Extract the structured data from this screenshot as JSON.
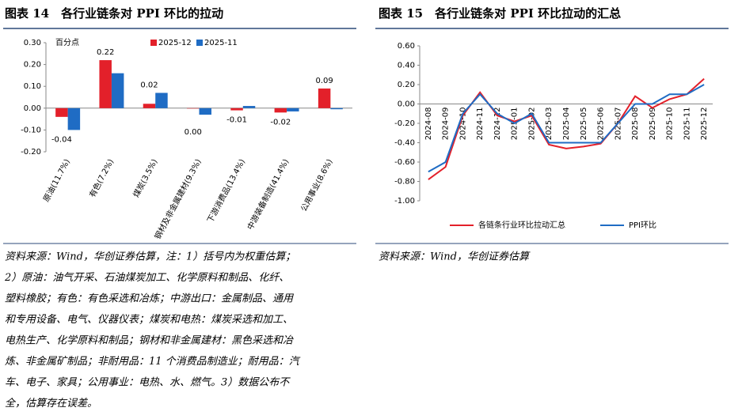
{
  "chart_data": [
    {
      "type": "bar",
      "title": "图表 14　各行业链条对 PPI 环比的拉动",
      "y_unit": "百分点",
      "categories": [
        "原油(11.7%)",
        "有色(7.2%)",
        "煤炭(3.5%)",
        "钢材及非金属建材(9.3%)",
        "下游消费品(13.4%)",
        "中游装备制造(41.4%)",
        "公用事业(8.6%)"
      ],
      "series": [
        {
          "name": "2025-12",
          "color": "#e3202a",
          "values": [
            -0.04,
            0.22,
            0.02,
            0.0,
            -0.01,
            -0.02,
            0.09
          ],
          "value_labels": [
            "-0.04",
            "0.22",
            "0.02",
            "0.00",
            "-0.01",
            "-0.02",
            "0.09"
          ]
        },
        {
          "name": "2025-11",
          "color": "#1f6cc4",
          "values": [
            -0.1,
            0.16,
            0.07,
            -0.03,
            0.01,
            -0.015,
            -0.005
          ]
        }
      ],
      "ylim": [
        -0.2,
        0.3
      ],
      "yticks": [
        {
          "value": -0.2,
          "label": "-0.20"
        },
        {
          "value": -0.1,
          "label": "-0.10"
        },
        {
          "value": 0,
          "label": "0.00"
        },
        {
          "value": 0.1,
          "label": "0.10"
        },
        {
          "value": 0.2,
          "label": "0.20"
        },
        {
          "value": 0.3,
          "label": "0.30"
        }
      ],
      "legend": "top"
    },
    {
      "type": "line",
      "title": "图表 15　各行业链条对 PPI 环比拉动的汇总",
      "categories": [
        "2024-08",
        "2024-09",
        "2024-10",
        "2024-11",
        "2024-12",
        "2025-01",
        "2025-02",
        "2025-03",
        "2025-04",
        "2025-05",
        "2025-06",
        "2025-07",
        "2025-08",
        "2025-09",
        "2025-10",
        "2025-11",
        "2025-12"
      ],
      "series": [
        {
          "name": "各链条行业环比拉动汇总",
          "color": "#e3202a",
          "values": [
            -0.78,
            -0.65,
            -0.12,
            0.12,
            -0.12,
            -0.18,
            -0.12,
            -0.42,
            -0.46,
            -0.44,
            -0.41,
            -0.2,
            0.08,
            -0.04,
            0.05,
            0.1,
            0.26
          ]
        },
        {
          "name": "PPI环比",
          "color": "#1f6cc4",
          "values": [
            -0.7,
            -0.6,
            -0.1,
            0.1,
            -0.1,
            -0.2,
            -0.1,
            -0.4,
            -0.4,
            -0.4,
            -0.4,
            -0.2,
            0.0,
            0.0,
            0.1,
            0.1,
            0.2
          ]
        }
      ],
      "ylim": [
        -1.0,
        0.6
      ],
      "yticks": [
        {
          "value": -1.0,
          "label": "-1.00"
        },
        {
          "value": -0.8,
          "label": "-0.80"
        },
        {
          "value": -0.6,
          "label": "-0.60"
        },
        {
          "value": -0.4,
          "label": "-0.40"
        },
        {
          "value": -0.2,
          "label": "-0.20"
        },
        {
          "value": 0,
          "label": "0.00"
        },
        {
          "value": 0.2,
          "label": "0.20"
        },
        {
          "value": 0.4,
          "label": "0.40"
        },
        {
          "value": 0.6,
          "label": "0.60"
        }
      ],
      "grid": false,
      "legend": "bottom"
    }
  ],
  "left_note": {
    "lines": [
      "资料来源：Wind，华创证券估算，注：1）括号内为权重估算；",
      "2）原油：油气开采、石油煤炭加工、化学原料和制品、化纤、",
      "塑料橡胶；有色：有色采选和冶炼；中游出口：金属制品、通用",
      "和专用设备、电气、仪器仪表；煤炭和电热：煤炭采选和加工、",
      "电热生产、化学原料和制品；钢材和非金属建材：黑色采选和冶",
      "炼、非金属矿制品；非耐用品：11 个消费品制造业；耐用品：汽",
      "车、电子、家具；公用事业：电热、水、燃气。3）数据公布不",
      "全，估算存在误差。"
    ]
  },
  "right_note": {
    "text": "资料来源：Wind，华创证券估算"
  }
}
